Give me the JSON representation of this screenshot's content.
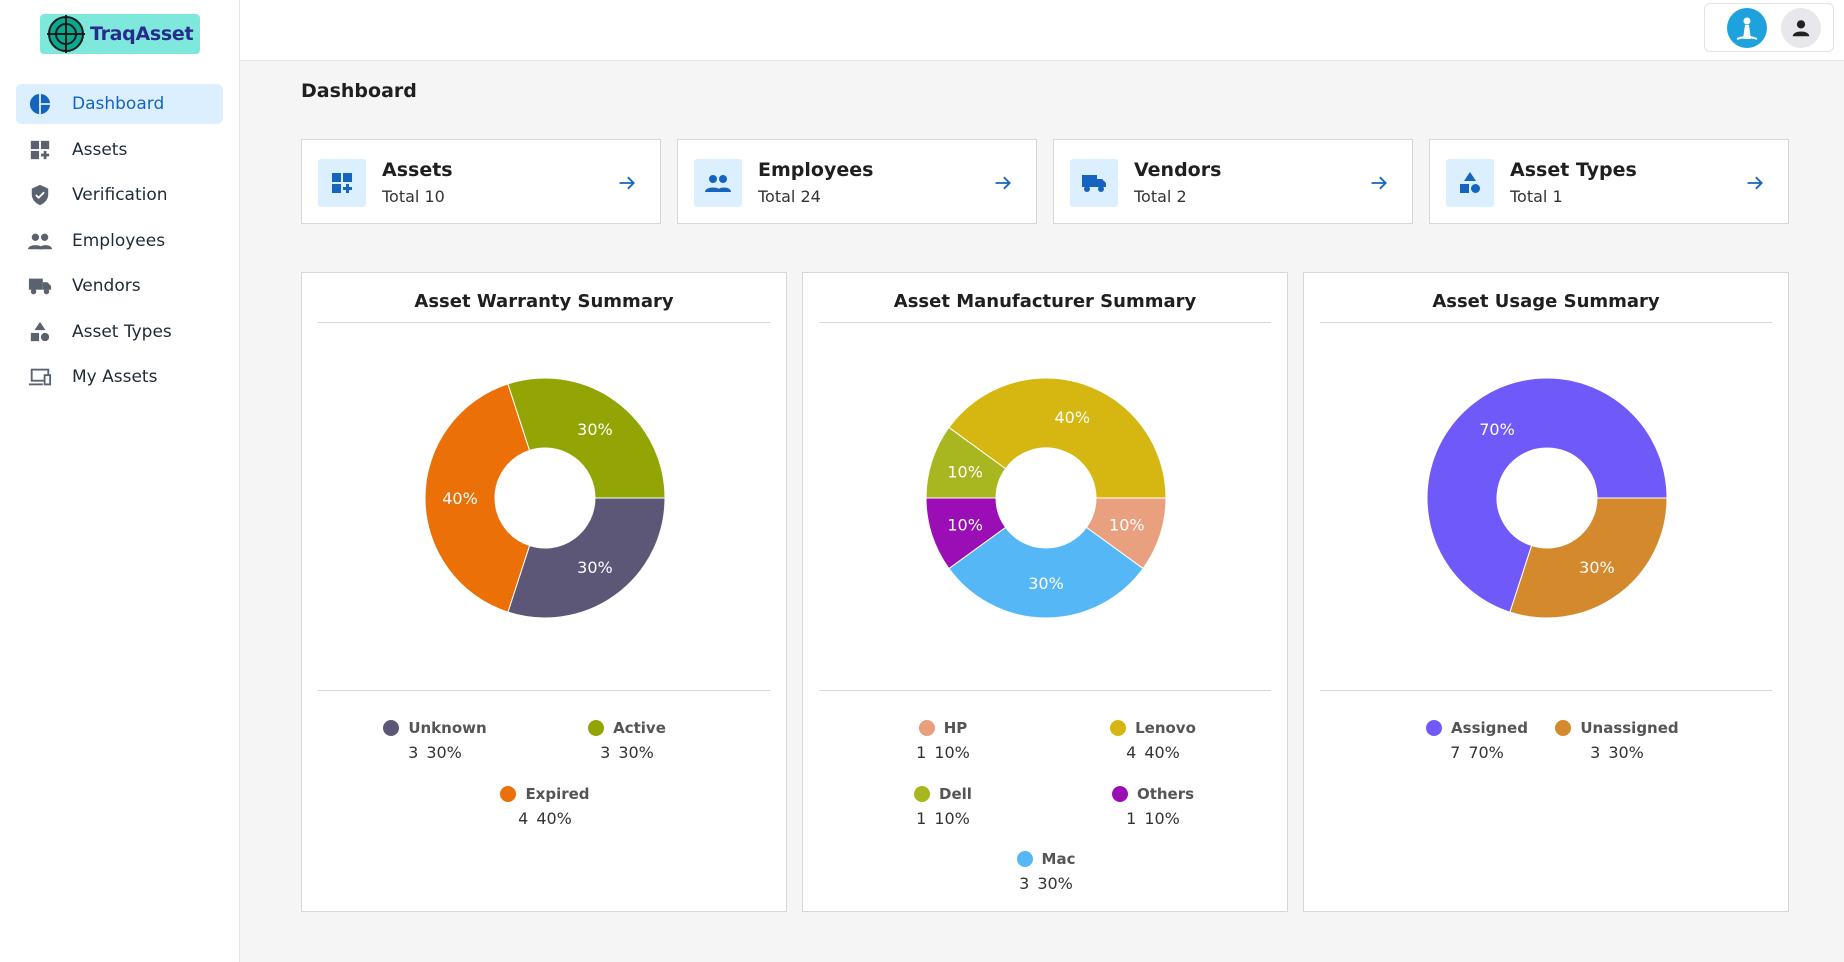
{
  "app": {
    "name": "TraqAsset"
  },
  "sidebar": {
    "items": [
      {
        "label": "Dashboard",
        "icon": "dashboard-icon",
        "active": true
      },
      {
        "label": "Assets",
        "icon": "assets-icon"
      },
      {
        "label": "Verification",
        "icon": "verified-shield-icon"
      },
      {
        "label": "Employees",
        "icon": "people-icon"
      },
      {
        "label": "Vendors",
        "icon": "truck-icon"
      },
      {
        "label": "Asset Types",
        "icon": "shapes-icon"
      },
      {
        "label": "My Assets",
        "icon": "devices-icon"
      }
    ]
  },
  "page": {
    "title": "Dashboard"
  },
  "stats": [
    {
      "title": "Assets",
      "subtitle": "Total 10",
      "icon": "assets-add-icon"
    },
    {
      "title": "Employees",
      "subtitle": "Total 24",
      "icon": "people-icon"
    },
    {
      "title": "Vendors",
      "subtitle": "Total 2",
      "icon": "truck-icon"
    },
    {
      "title": "Asset Types",
      "subtitle": "Total 1",
      "icon": "shapes-icon"
    }
  ],
  "chart_data": [
    {
      "type": "pie",
      "title": "Asset Warranty Summary",
      "donut": true,
      "slices": [
        {
          "label": "Unknown",
          "count": "3",
          "percent": "30%",
          "value": 30,
          "color": "#5c5776"
        },
        {
          "label": "Expired",
          "count": "4",
          "percent": "40%",
          "value": 40,
          "color": "#ec7008"
        },
        {
          "label": "Active",
          "count": "3",
          "percent": "30%",
          "value": 30,
          "color": "#93a505"
        }
      ],
      "legend": [
        {
          "label": "Unknown",
          "count": "3",
          "percent": "30%",
          "color": "#5c5776"
        },
        {
          "label": "Active",
          "count": "3",
          "percent": "30%",
          "color": "#93a505"
        },
        {
          "label": "Expired",
          "count": "4",
          "percent": "40%",
          "color": "#ec7008"
        }
      ]
    },
    {
      "type": "pie",
      "title": "Asset Manufacturer Summary",
      "donut": true,
      "slices": [
        {
          "label": "HP",
          "count": "1",
          "percent": "10%",
          "value": 10,
          "color": "#e8a07f"
        },
        {
          "label": "Mac",
          "count": "3",
          "percent": "30%",
          "value": 30,
          "color": "#56b7f7"
        },
        {
          "label": "Others",
          "count": "1",
          "percent": "10%",
          "value": 10,
          "color": "#9b0db5"
        },
        {
          "label": "Dell",
          "count": "1",
          "percent": "10%",
          "value": 10,
          "color": "#a8b61f"
        },
        {
          "label": "Lenovo",
          "count": "4",
          "percent": "40%",
          "value": 40,
          "color": "#d6b712"
        }
      ],
      "legend": [
        {
          "label": "HP",
          "count": "1",
          "percent": "10%",
          "color": "#e8a07f"
        },
        {
          "label": "Lenovo",
          "count": "4",
          "percent": "40%",
          "color": "#d6b712"
        },
        {
          "label": "Dell",
          "count": "1",
          "percent": "10%",
          "color": "#a8b61f"
        },
        {
          "label": "Others",
          "count": "1",
          "percent": "10%",
          "color": "#9b0db5"
        },
        {
          "label": "Mac",
          "count": "3",
          "percent": "30%",
          "color": "#56b7f7"
        }
      ]
    },
    {
      "type": "pie",
      "title": "Asset Usage Summary",
      "donut": true,
      "slices": [
        {
          "label": "Unassigned",
          "count": "3",
          "percent": "30%",
          "value": 30,
          "color": "#d3892c"
        },
        {
          "label": "Assigned",
          "count": "7",
          "percent": "70%",
          "value": 70,
          "color": "#7059f9"
        }
      ],
      "legend": [
        {
          "label": "Assigned",
          "count": "7",
          "percent": "70%",
          "color": "#7059f9"
        },
        {
          "label": "Unassigned",
          "count": "3",
          "percent": "30%",
          "color": "#d3892c"
        }
      ]
    }
  ]
}
